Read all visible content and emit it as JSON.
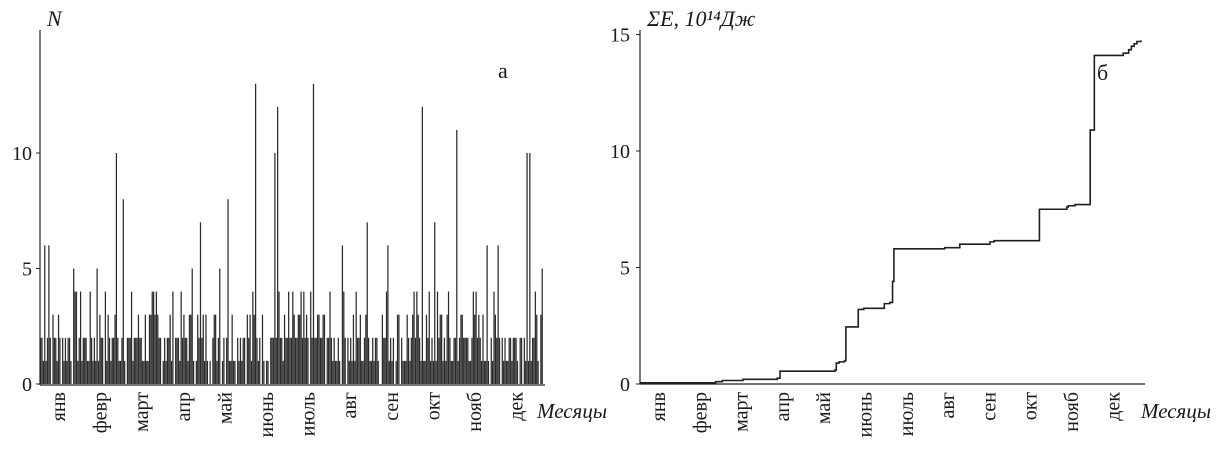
{
  "chart_data": [
    {
      "panel": "а",
      "type": "bar",
      "ylabel": "N",
      "xlabel": "Месяцы",
      "ylim": [
        0,
        15
      ],
      "yticks": [
        0,
        5,
        10
      ],
      "months": [
        "янв",
        "февр",
        "март",
        "апр",
        "май",
        "июнь",
        "июль",
        "авг",
        "сен",
        "окт",
        "нояб",
        "дек"
      ],
      "peaks": [
        {
          "day": 3,
          "value": 6
        },
        {
          "day": 6,
          "value": 6
        },
        {
          "day": 24,
          "value": 5
        },
        {
          "day": 41,
          "value": 5
        },
        {
          "day": 55,
          "value": 10
        },
        {
          "day": 60,
          "value": 8
        },
        {
          "day": 84,
          "value": 4
        },
        {
          "day": 110,
          "value": 5
        },
        {
          "day": 116,
          "value": 7
        },
        {
          "day": 130,
          "value": 5
        },
        {
          "day": 136,
          "value": 8
        },
        {
          "day": 156,
          "value": 13
        },
        {
          "day": 170,
          "value": 10
        },
        {
          "day": 172,
          "value": 12
        },
        {
          "day": 198,
          "value": 13
        },
        {
          "day": 219,
          "value": 6
        },
        {
          "day": 237,
          "value": 7
        },
        {
          "day": 252,
          "value": 6
        },
        {
          "day": 277,
          "value": 12
        },
        {
          "day": 286,
          "value": 7
        },
        {
          "day": 302,
          "value": 11
        },
        {
          "day": 324,
          "value": 6
        },
        {
          "day": 332,
          "value": 6
        },
        {
          "day": 353,
          "value": 10
        },
        {
          "day": 355,
          "value": 10
        },
        {
          "day": 364,
          "value": 5
        }
      ],
      "baseline_note": "",
      "annotation": "а"
    },
    {
      "panel": "б",
      "type": "line",
      "ylabel": "ΣE, 10¹⁴Дж",
      "xlabel": "Месяцы",
      "ylim": [
        0,
        15
      ],
      "yticks": [
        0,
        5,
        10,
        15
      ],
      "months": [
        "янв",
        "февр",
        "март",
        "апр",
        "май",
        "июнь",
        "июль",
        "авг",
        "сен",
        "окт",
        "нояб",
        "дек"
      ],
      "x": [
        0,
        5,
        45,
        55,
        60,
        75,
        100,
        102,
        140,
        142,
        143,
        145,
        148,
        149,
        150,
        157,
        159,
        163,
        178,
        181,
        182,
        184,
        185,
        192,
        222,
        232,
        233,
        236,
        255,
        258,
        260,
        290,
        291,
        311,
        312,
        317,
        322,
        328,
        331,
        350,
        352,
        356,
        358,
        360,
        362,
        365
      ],
      "y": [
        0.05,
        0.05,
        0.05,
        0.1,
        0.15,
        0.2,
        0.25,
        0.55,
        0.55,
        0.6,
        0.9,
        0.95,
        0.95,
        1.0,
        2.45,
        2.45,
        3.2,
        3.25,
        3.45,
        3.45,
        3.5,
        4.4,
        5.8,
        5.8,
        5.85,
        5.85,
        6.0,
        6.0,
        6.1,
        6.15,
        6.15,
        6.15,
        7.5,
        7.6,
        7.65,
        7.7,
        7.7,
        10.9,
        14.1,
        14.1,
        14.2,
        14.35,
        14.5,
        14.6,
        14.7,
        14.75
      ],
      "annotation": "б"
    }
  ]
}
